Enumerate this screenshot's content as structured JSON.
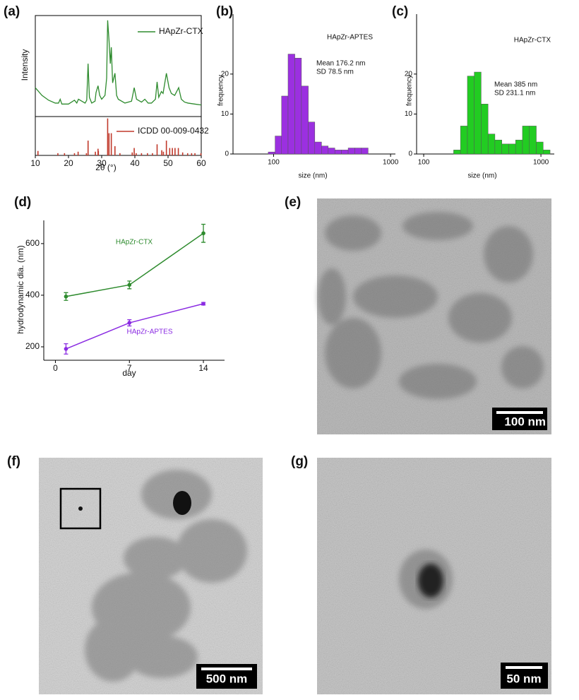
{
  "chart_data": [
    {
      "type": "line",
      "panel_label": "(a)",
      "ylabel": "Intensity",
      "x": [
        10,
        12,
        14,
        16,
        17,
        17.5,
        18,
        20,
        21.8,
        22.5,
        23,
        25,
        25.5,
        25.9,
        26.3,
        27,
        28,
        28.3,
        28.9,
        29.4,
        30,
        31,
        31.5,
        31.8,
        32.2,
        32.6,
        32.9,
        33.3,
        34,
        34.5,
        35,
        37,
        39,
        39.8,
        40.5,
        42,
        43,
        44,
        45,
        46.2,
        46.7,
        47.2,
        48,
        48.5,
        49.5,
        50.3,
        51,
        52,
        53.2,
        54,
        55,
        56,
        58,
        60
      ],
      "series": [
        {
          "name": "HApZr-CTX",
          "color": "#2e8b2e",
          "values": [
            30,
            22,
            17,
            14,
            14,
            18,
            13,
            13,
            17,
            14,
            18,
            14,
            17,
            55,
            20,
            14,
            16,
            25,
            32,
            22,
            18,
            22,
            40,
            100,
            80,
            55,
            72,
            35,
            45,
            22,
            18,
            14,
            16,
            30,
            18,
            15,
            18,
            14,
            14,
            18,
            36,
            20,
            26,
            24,
            45,
            30,
            24,
            22,
            30,
            18,
            15,
            14,
            13,
            12
          ]
        }
      ],
      "xlim": [
        10,
        60
      ],
      "ylim": [
        0,
        105
      ]
    },
    {
      "type": "stem",
      "xlabel": "2θ (°)",
      "x": [
        10.8,
        16.8,
        18.8,
        21.8,
        22.9,
        25.4,
        25.9,
        28.1,
        28.9,
        29.0,
        31.8,
        32.2,
        32.9,
        34.0,
        35.5,
        39.2,
        39.8,
        40.4,
        42.0,
        43.8,
        45.3,
        46.7,
        48.1,
        48.6,
        49.5,
        50.5,
        51.3,
        52.1,
        53.1,
        54.4,
        55.9,
        57.1,
        58.1,
        59.9
      ],
      "series": [
        {
          "name": "ICDD 00-009-0432",
          "color": "#c0392b",
          "values": [
            12,
            6,
            6,
            6,
            10,
            6,
            40,
            10,
            18,
            12,
            100,
            60,
            60,
            25,
            6,
            8,
            20,
            6,
            6,
            6,
            6,
            30,
            14,
            10,
            40,
            20,
            20,
            20,
            20,
            8,
            6,
            6,
            6,
            6
          ]
        }
      ],
      "xlim": [
        10,
        60
      ],
      "ylim": [
        0,
        105
      ],
      "xticks": [
        10,
        20,
        30,
        40,
        50,
        60
      ]
    },
    {
      "type": "histogram",
      "panel_label": "(b)",
      "title": "HApZr-APTES",
      "annotations": [
        "Mean 176.2 nm",
        "SD 78.5 nm"
      ],
      "xlabel": "size (nm)",
      "ylabel": "frequency",
      "xlog": true,
      "color": "#9b30e0",
      "bins": [
        90,
        103,
        117,
        133,
        152,
        173,
        198,
        225,
        257,
        293,
        334,
        380,
        434,
        494,
        564,
        643
      ],
      "values": [
        0.5,
        4.5,
        14.5,
        25,
        24,
        17,
        8,
        3,
        2,
        1.5,
        1,
        1,
        1.5,
        1.5,
        1.5
      ],
      "xlim": [
        45,
        1100
      ],
      "xticks": [
        100,
        1000
      ],
      "ylim": [
        0,
        35
      ],
      "yticks": [
        0,
        10,
        20
      ]
    },
    {
      "type": "histogram",
      "panel_label": "(c)",
      "title": "HApZr-CTX",
      "annotations": [
        "Mean 385 nm",
        "SD 231.1 nm"
      ],
      "xlabel": "size (nm)",
      "ylabel": "frequency",
      "xlog": true,
      "color": "#22cc22",
      "bins": [
        180,
        206,
        236,
        270,
        309,
        354,
        405,
        464,
        531,
        608,
        696,
        797,
        913,
        1045,
        1197
      ],
      "values": [
        1,
        7,
        19.5,
        20.5,
        12.5,
        5,
        3.5,
        2.5,
        2.5,
        3.5,
        7,
        7,
        3,
        1
      ],
      "xlim": [
        87,
        1300
      ],
      "xticks": [
        100,
        1000
      ],
      "ylim": [
        0,
        35
      ],
      "yticks": [
        0,
        10,
        20
      ]
    },
    {
      "type": "errorline",
      "panel_label": "(d)",
      "xlabel": "day",
      "ylabel": "hydrodynamic dia. (nm)",
      "x": [
        1,
        7,
        14
      ],
      "series": [
        {
          "name": "HApZr-CTX",
          "color": "#2e8b2e",
          "values": [
            395,
            440,
            640
          ],
          "errors": [
            15,
            15,
            35
          ]
        },
        {
          "name": "HApZr-APTES",
          "color": "#8a2be2",
          "values": [
            192,
            293,
            367
          ],
          "errors": [
            20,
            12,
            5
          ]
        }
      ],
      "xlim": [
        -1.1,
        16
      ],
      "xticks": [
        0,
        7,
        14
      ],
      "ylim": [
        148,
        690
      ],
      "yticks": [
        200,
        400,
        600
      ]
    }
  ],
  "images": [
    {
      "panel_label": "(e)",
      "scale_bar": "100 nm"
    },
    {
      "panel_label": "(f)",
      "scale_bar": "500 nm"
    },
    {
      "panel_label": "(g)",
      "scale_bar": "50 nm"
    }
  ]
}
